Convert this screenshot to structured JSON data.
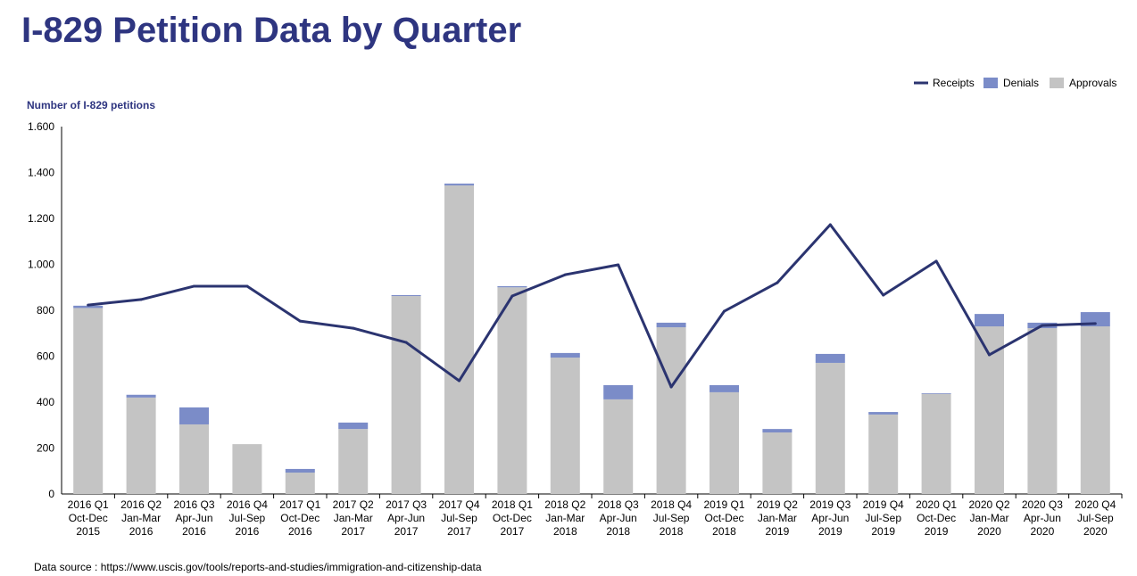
{
  "page": {
    "title": "I-829 Petition Data by Quarter",
    "source": "Data source : https://www.uscis.gov/tools/reports-and-studies/immigration-and-citizenship-data"
  },
  "chart_data": {
    "type": "bar",
    "stacked": true,
    "title": "I-829 Petition Data by Quarter",
    "ylabel": "Number of I-829 petitions",
    "xlabel": "",
    "ylim": [
      0,
      1600
    ],
    "yticks": [
      0,
      200,
      400,
      600,
      800,
      1000,
      1200,
      1400,
      1600
    ],
    "ytick_labels": [
      "0",
      "200",
      "400",
      "600",
      "800",
      "1.000",
      "1.200",
      "1.400",
      "1.600"
    ],
    "legend_position": "top-right",
    "legend": [
      "Receipts",
      "Denials",
      "Approvals"
    ],
    "categories": [
      [
        "2016 Q1",
        "Oct-Dec",
        "2015"
      ],
      [
        "2016 Q2",
        "Jan-Mar",
        "2016"
      ],
      [
        "2016 Q3",
        "Apr-Jun",
        "2016"
      ],
      [
        "2016 Q4",
        "Jul-Sep",
        "2016"
      ],
      [
        "2017 Q1",
        "Oct-Dec",
        "2016"
      ],
      [
        "2017 Q2",
        "Jan-Mar",
        "2017"
      ],
      [
        "2017 Q3",
        "Apr-Jun",
        "2017"
      ],
      [
        "2017 Q4",
        "Jul-Sep",
        "2017"
      ],
      [
        "2018 Q1",
        "Oct-Dec",
        "2017"
      ],
      [
        "2018 Q2",
        "Jan-Mar",
        "2018"
      ],
      [
        "2018 Q3",
        "Apr-Jun",
        "2018"
      ],
      [
        "2018 Q4",
        "Jul-Sep",
        "2018"
      ],
      [
        "2019 Q1",
        "Oct-Dec",
        "2018"
      ],
      [
        "2019 Q2",
        "Jan-Mar",
        "2019"
      ],
      [
        "2019 Q3",
        "Apr-Jun",
        "2019"
      ],
      [
        "2019 Q4",
        "Jul-Sep",
        "2019"
      ],
      [
        "2020 Q1",
        "Oct-Dec",
        "2019"
      ],
      [
        "2020 Q2",
        "Jan-Mar",
        "2020"
      ],
      [
        "2020 Q3",
        "Apr-Jun",
        "2020"
      ],
      [
        "2020 Q4",
        "Jul-Sep",
        "2020"
      ]
    ],
    "series": [
      {
        "name": "Approvals",
        "type": "bar",
        "color": "#c4c4c4",
        "values": [
          810,
          420,
          303,
          217,
          93,
          283,
          862,
          1344,
          900,
          594,
          412,
          726,
          443,
          268,
          571,
          346,
          436,
          730,
          722,
          730
        ]
      },
      {
        "name": "Denials",
        "type": "bar",
        "color": "#7b8cc8",
        "values": [
          10,
          12,
          74,
          0,
          16,
          28,
          4,
          8,
          5,
          20,
          62,
          20,
          31,
          15,
          39,
          11,
          3,
          54,
          24,
          62
        ]
      },
      {
        "name": "Receipts",
        "type": "line",
        "color": "#2b3470",
        "values": [
          823,
          847,
          905,
          905,
          753,
          722,
          660,
          493,
          862,
          955,
          998,
          466,
          796,
          920,
          1173,
          866,
          1014,
          606,
          734,
          742
        ]
      }
    ]
  }
}
